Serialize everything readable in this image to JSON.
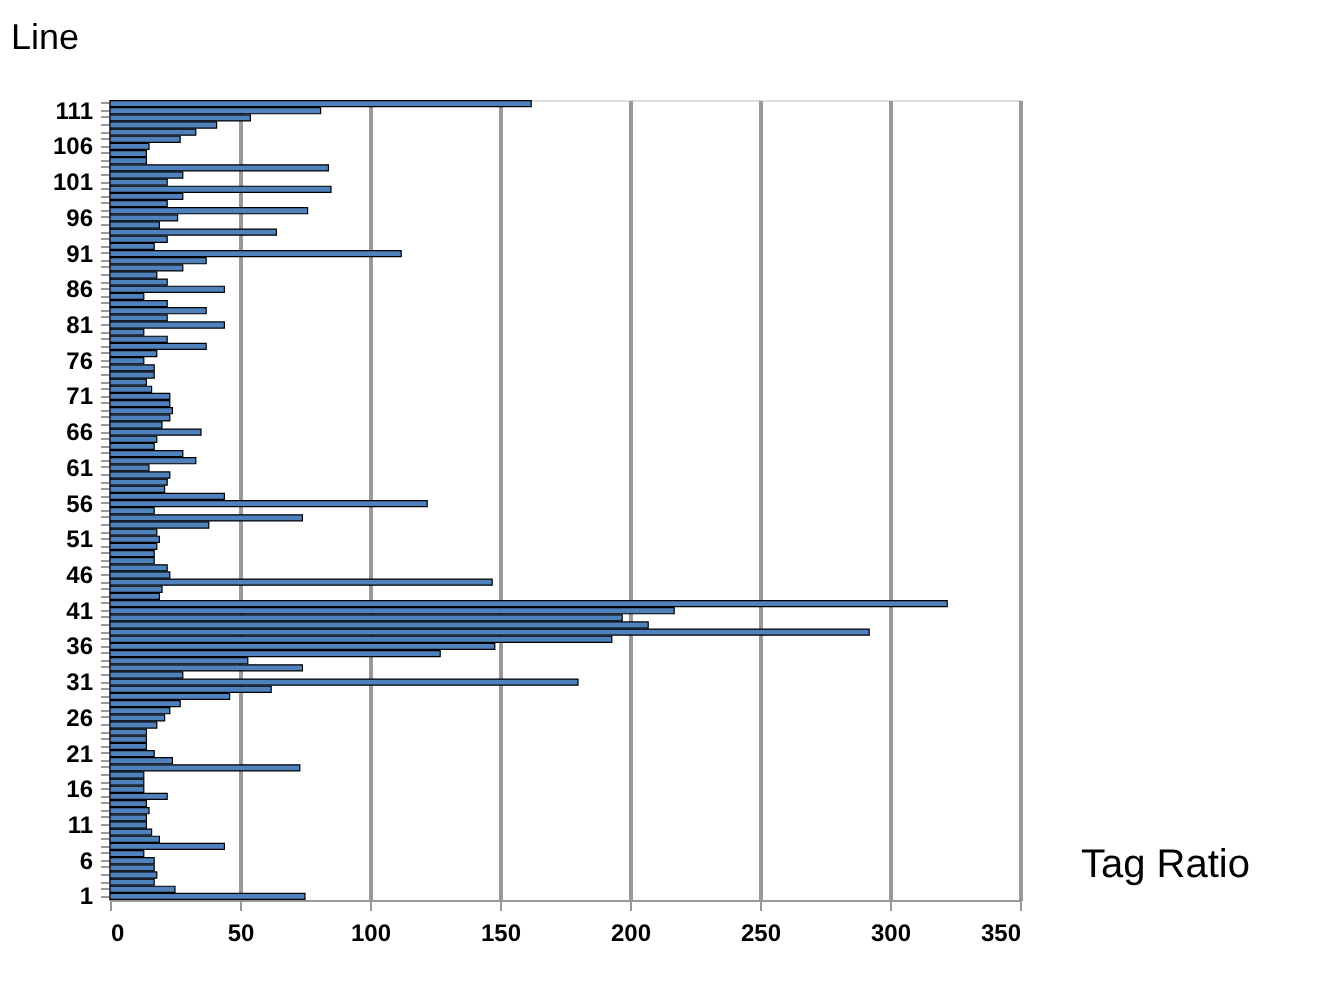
{
  "chart_data": {
    "type": "bar",
    "orientation": "horizontal",
    "xlabel": "Tag Ratio",
    "ylabel": "Line",
    "categories": [
      null,
      "111",
      null,
      null,
      null,
      null,
      "106",
      null,
      null,
      null,
      null,
      "101",
      null,
      null,
      null,
      null,
      "96",
      null,
      null,
      null,
      null,
      "91",
      null,
      null,
      null,
      null,
      "86",
      null,
      null,
      null,
      null,
      "81",
      null,
      null,
      null,
      null,
      "76",
      null,
      null,
      null,
      null,
      "71",
      null,
      null,
      null,
      null,
      "66",
      null,
      null,
      null,
      null,
      "61",
      null,
      null,
      null,
      null,
      "56",
      null,
      null,
      null,
      null,
      "51",
      null,
      null,
      null,
      null,
      "46",
      null,
      null,
      null,
      null,
      "41",
      null,
      null,
      null,
      null,
      "36",
      null,
      null,
      null,
      null,
      "31",
      null,
      null,
      null,
      null,
      "26",
      null,
      null,
      null,
      null,
      "21",
      null,
      null,
      null,
      null,
      "16",
      null,
      null,
      null,
      null,
      "11",
      null,
      null,
      null,
      null,
      "6",
      null,
      null,
      null,
      null,
      "1"
    ],
    "values": [
      162,
      81,
      54,
      41,
      33,
      27,
      15,
      14,
      14,
      84,
      28,
      22,
      85,
      28,
      22,
      76,
      26,
      19,
      64,
      22,
      17,
      112,
      37,
      28,
      18,
      22,
      44,
      13,
      22,
      37,
      22,
      44,
      13,
      22,
      37,
      18,
      13,
      17,
      17,
      14,
      16,
      23,
      23,
      24,
      23,
      20,
      35,
      18,
      17,
      28,
      33,
      15,
      23,
      22,
      21,
      44,
      122,
      17,
      74,
      38,
      18,
      19,
      18,
      17,
      17,
      22,
      23,
      147,
      20,
      19,
      322,
      217,
      197,
      207,
      292,
      193,
      148,
      127,
      53,
      74,
      28,
      180,
      62,
      46,
      27,
      23,
      21,
      18,
      14,
      14,
      14,
      17,
      24,
      73,
      13,
      13,
      13,
      22,
      14,
      15,
      14,
      14,
      16,
      19,
      44,
      13,
      17,
      17,
      18,
      17,
      25,
      75
    ],
    "color": "#4f81bd",
    "xlim": [
      0,
      350
    ],
    "xticks": [
      0,
      50,
      100,
      150,
      200,
      250,
      300,
      350
    ],
    "grid": "x"
  }
}
